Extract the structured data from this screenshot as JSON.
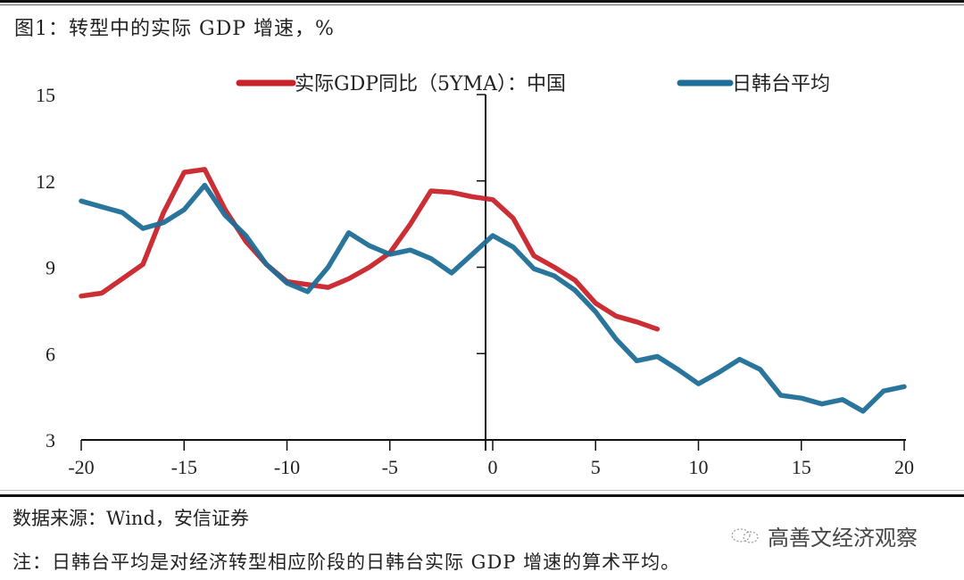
{
  "figure": {
    "title": "图1：转型中的实际 GDP 增速，%"
  },
  "footer": {
    "source": "数据来源：Wind，安信证券",
    "note": "注：日韩台平均是对经济转型相应阶段的日韩台实际 GDP 增速的算术平均。",
    "watermark": "高善文经济观察",
    "watermark_icon": "wechat-icon"
  },
  "colors": {
    "china": "#c8232a",
    "jkt": "#1f6e97",
    "axis": "#111111"
  },
  "chart_data": {
    "type": "line",
    "title": "图1：转型中的实际 GDP 增速，%",
    "xlabel": "",
    "ylabel": "",
    "xlim": [
      -20,
      20
    ],
    "ylim": [
      3,
      15
    ],
    "xticks": [
      -20,
      -15,
      -10,
      -5,
      0,
      5,
      10,
      15,
      20
    ],
    "xtick_labels": [
      "-20",
      "-15",
      "-10",
      "-5",
      "0",
      "5",
      "10",
      "15",
      "20"
    ],
    "yticks": [
      3,
      6,
      9,
      12,
      15
    ],
    "ytick_labels": [
      "3",
      "6",
      "9",
      "12",
      "15"
    ],
    "grid": false,
    "legend_position": "top",
    "series": [
      {
        "name": "实际GDP同比（5YMA）：中国",
        "color": "#c8232a",
        "x": [
          -20,
          -19,
          -18,
          -17,
          -16,
          -15,
          -14,
          -13,
          -12,
          -11,
          -10,
          -9,
          -8,
          -7,
          -6,
          -5,
          -4,
          -3,
          -2,
          -1,
          0,
          1,
          2,
          3,
          4,
          5,
          6,
          7,
          8
        ],
        "values": [
          8.0,
          8.1,
          8.6,
          9.1,
          10.9,
          12.3,
          12.4,
          11.0,
          9.9,
          9.1,
          8.5,
          8.4,
          8.3,
          8.6,
          9.0,
          9.5,
          10.5,
          11.65,
          11.6,
          11.45,
          11.35,
          10.7,
          9.4,
          9.0,
          8.55,
          7.75,
          7.3,
          7.1,
          6.85
        ]
      },
      {
        "name": "日韩台平均",
        "color": "#1f6e97",
        "x": [
          -20,
          -19,
          -18,
          -17,
          -16,
          -15,
          -14,
          -13,
          -12,
          -11,
          -10,
          -9,
          -8,
          -7,
          -6,
          -5,
          -4,
          -3,
          -2,
          -1,
          0,
          1,
          2,
          3,
          4,
          5,
          6,
          7,
          8,
          9,
          10,
          11,
          12,
          13,
          14,
          15,
          16,
          17,
          18,
          19,
          20
        ],
        "values": [
          11.3,
          11.1,
          10.9,
          10.35,
          10.55,
          11.0,
          11.85,
          10.8,
          10.1,
          9.1,
          8.45,
          8.15,
          9.0,
          10.2,
          9.75,
          9.45,
          9.6,
          9.3,
          8.8,
          9.45,
          10.1,
          9.7,
          8.95,
          8.7,
          8.2,
          7.45,
          6.5,
          5.75,
          5.9,
          5.45,
          4.95,
          5.35,
          5.8,
          5.45,
          4.55,
          4.45,
          4.25,
          4.4,
          4.0,
          4.7,
          4.85
        ]
      }
    ]
  }
}
